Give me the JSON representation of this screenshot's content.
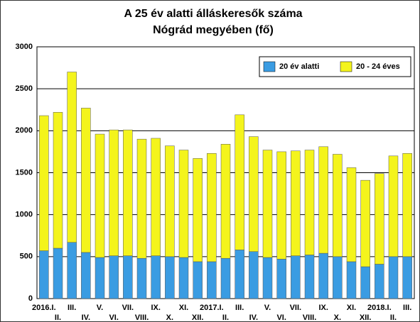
{
  "chart_data": {
    "type": "stacked_bar",
    "title": "A 25 év alatti álláskeresők száma",
    "subtitle": "Nógrád megyében (fő)",
    "categories": [
      "2016.I.",
      "II.",
      "III.",
      "IV.",
      "V.",
      "VI.",
      "VII.",
      "VIII.",
      "IX.",
      "X.",
      "XI.",
      "XII.",
      "2017.I.",
      "II.",
      "III.",
      "IV.",
      "V.",
      "VI.",
      "VII.",
      "VIII.",
      "IX.",
      "X.",
      "XI.",
      "XII.",
      "2018.I.",
      "II.",
      "III."
    ],
    "series": [
      {
        "name": "20 év alatti",
        "color": "#3a9ce2",
        "values": [
          570,
          600,
          670,
          550,
          490,
          510,
          510,
          480,
          510,
          500,
          490,
          440,
          440,
          480,
          580,
          560,
          490,
          470,
          510,
          520,
          540,
          500,
          440,
          380,
          410,
          500,
          500
        ]
      },
      {
        "name": "20 - 24 éves",
        "color": "#f4f41c",
        "values": [
          1610,
          1620,
          2030,
          1720,
          1470,
          1500,
          1500,
          1420,
          1400,
          1320,
          1280,
          1230,
          1290,
          1360,
          1610,
          1370,
          1280,
          1280,
          1250,
          1250,
          1270,
          1220,
          1120,
          1030,
          1080,
          1200,
          1230
        ]
      }
    ],
    "ylim": [
      0,
      3000
    ],
    "yticks": [
      0,
      500,
      1000,
      1500,
      2000,
      2500,
      3000
    ],
    "grid": true,
    "legend": "top-right"
  }
}
